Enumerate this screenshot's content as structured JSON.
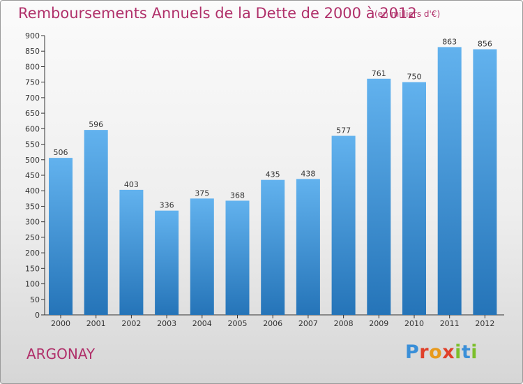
{
  "header": {
    "title": "Remboursements Annuels de la Dette de 2000 à 2012",
    "subtitle": "(en milliers d'€)"
  },
  "footer": {
    "place": "ARGONAY",
    "logo_text": "Proxiti",
    "logo_colors": [
      "#3a8fd8",
      "#e0402a",
      "#e89a1c",
      "#e0402a",
      "#7bbf2a",
      "#3a8fd8",
      "#7bbf2a"
    ]
  },
  "colors": {
    "bar_top": "#62b2ee",
    "bar_bottom": "#2574b8",
    "axis": "#333333",
    "text": "#333333",
    "title": "#b0306a"
  },
  "chart_data": {
    "type": "bar",
    "title": "Remboursements Annuels de la Dette de 2000 à 2012",
    "subtitle": "(en milliers d'€)",
    "categories": [
      "2000",
      "2001",
      "2002",
      "2003",
      "2004",
      "2005",
      "2006",
      "2007",
      "2008",
      "2009",
      "2010",
      "2011",
      "2012"
    ],
    "values": [
      506,
      596,
      403,
      336,
      375,
      368,
      435,
      438,
      577,
      761,
      750,
      863,
      856
    ],
    "ylim": [
      0,
      900
    ],
    "yticks": [
      0,
      50,
      100,
      150,
      200,
      250,
      300,
      350,
      400,
      450,
      500,
      550,
      600,
      650,
      700,
      750,
      800,
      850,
      900
    ],
    "grid": false,
    "legend": "none",
    "data_labels": true
  }
}
